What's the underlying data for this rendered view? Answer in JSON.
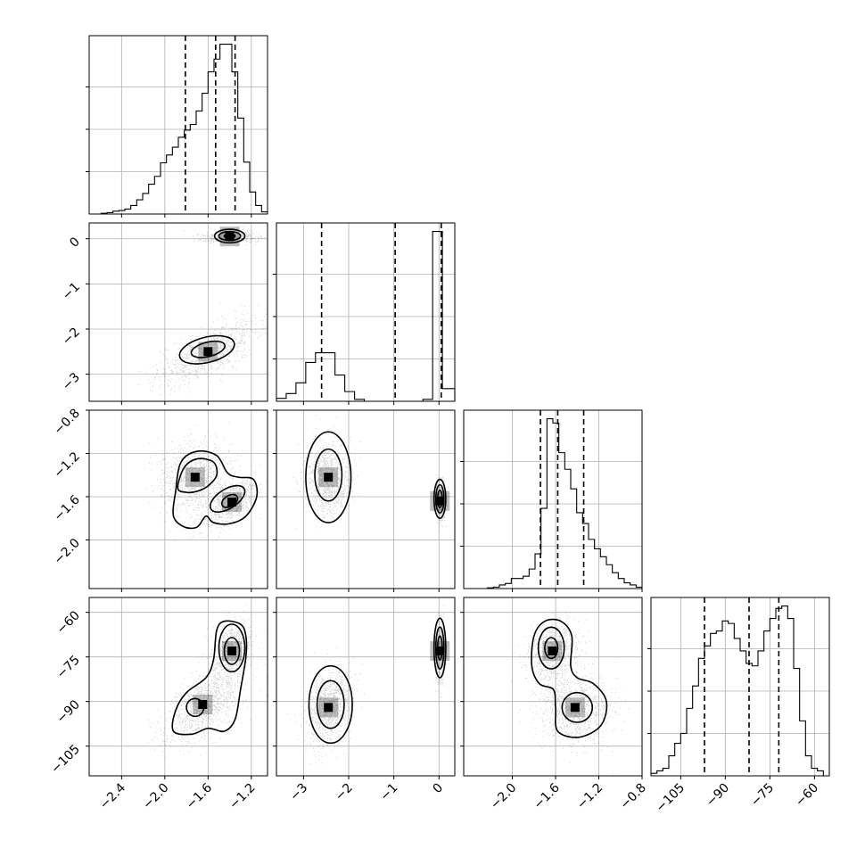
{
  "chart_data": {
    "type": "corner",
    "title": "",
    "quantiles": [
      0.16,
      0.5,
      0.84
    ],
    "grid": true,
    "parameters": [
      {
        "range": [
          -2.7,
          -1.05
        ],
        "ticks": [
          -2.4,
          -2.0,
          -1.6,
          -1.2
        ],
        "tick_labels": [
          "−2.4",
          "−2.0",
          "−1.6",
          "−1.2"
        ],
        "quantile_values": [
          -1.81,
          -1.53,
          -1.35
        ],
        "hist": {
          "bins": [
            -2.7,
            -2.645,
            -2.59,
            -2.535,
            -2.48,
            -2.425,
            -2.37,
            -2.315,
            -2.26,
            -2.205,
            -2.15,
            -2.095,
            -2.04,
            -1.985,
            -1.93,
            -1.875,
            -1.82,
            -1.765,
            -1.71,
            -1.655,
            -1.6,
            -1.545,
            -1.49,
            -1.435,
            -1.38,
            -1.325,
            -1.27,
            -1.215,
            -1.16,
            -1.105,
            -1.05
          ],
          "counts": [
            0,
            0,
            1,
            2,
            4,
            5,
            7,
            12,
            20,
            29,
            42,
            53,
            72,
            83,
            94,
            108,
            118,
            126,
            145,
            170,
            200,
            218,
            239,
            239,
            200,
            135,
            73,
            31,
            12,
            3
          ]
        }
      },
      {
        "range": [
          -3.6,
          0.35
        ],
        "ticks": [
          -3,
          -2,
          -1,
          0
        ],
        "tick_labels": [
          "−3",
          "−2",
          "−1",
          "0"
        ],
        "quantile_values": [
          -2.6,
          -0.97,
          0.05
        ],
        "hist": {
          "bins": [
            -3.6,
            -3.3838,
            -3.1676,
            -2.9514,
            -2.7352,
            -2.519,
            -2.3028,
            -2.0866,
            -1.8704,
            -1.6542,
            -1.438,
            -1.2218,
            -1.0056,
            -0.7894,
            -0.5732,
            -0.357,
            -0.1408,
            0.0754,
            0.35
          ],
          "counts": [
            3,
            8,
            19,
            40,
            50,
            50,
            27,
            10,
            2,
            0,
            0,
            0,
            0,
            0,
            0,
            2,
            175,
            13
          ]
        }
      },
      {
        "range": [
          -2.45,
          -0.8
        ],
        "ticks": [
          -2.0,
          -1.6,
          -1.2,
          -0.8
        ],
        "tick_labels": [
          "−2.0",
          "−1.6",
          "−1.2",
          "−0.8"
        ],
        "quantile_values": [
          -1.74,
          -1.58,
          -1.34
        ],
        "hist": {
          "bins": [
            -2.45,
            -2.395,
            -2.34,
            -2.285,
            -2.23,
            -2.175,
            -2.12,
            -2.065,
            -2.01,
            -1.955,
            -1.9,
            -1.845,
            -1.79,
            -1.735,
            -1.68,
            -1.625,
            -1.57,
            -1.515,
            -1.46,
            -1.405,
            -1.35,
            -1.295,
            -1.24,
            -1.185,
            -1.13,
            -1.075,
            -1.02,
            -0.965,
            -0.91,
            -0.855,
            -0.8
          ],
          "counts": [
            0,
            0,
            0,
            0,
            1,
            2,
            5,
            7,
            14,
            14,
            17,
            27,
            48,
            111,
            235,
            229,
            188,
            165,
            138,
            105,
            90,
            68,
            55,
            44,
            33,
            22,
            14,
            8,
            5,
            2
          ]
        }
      },
      {
        "range": [
          -115,
          -55
        ],
        "ticks": [
          -105,
          -90,
          -75,
          -60
        ],
        "tick_labels": [
          "−105",
          "−90",
          "−75",
          "−60"
        ],
        "quantile_values": [
          -97,
          -82,
          -72
        ],
        "hist": {
          "bins": [
            -115,
            -113,
            -111,
            -109,
            -107,
            -105,
            -103,
            -101,
            -99,
            -97,
            -95,
            -93,
            -91,
            -89,
            -87,
            -85,
            -83,
            -81,
            -79,
            -77,
            -75,
            -73,
            -71,
            -69,
            -67,
            -65,
            -63,
            -61,
            -59,
            -57,
            -55
          ],
          "counts": [
            1,
            2,
            3,
            8,
            13,
            17,
            27,
            36,
            47,
            52,
            57,
            58,
            62,
            61,
            55,
            50,
            45,
            44,
            50,
            58,
            63,
            67,
            68,
            63,
            43,
            22,
            8,
            3,
            2,
            0
          ]
        }
      }
    ],
    "pairs": [
      {
        "x": 0,
        "y": 1,
        "components": [
          {
            "w": 0.45,
            "mx": -1.4,
            "my": 0.05,
            "sx": 0.11,
            "sy": 0.06,
            "rho": 0.0
          },
          {
            "w": 0.55,
            "mx": -1.6,
            "my": -2.5,
            "sx": 0.22,
            "sy": 0.35,
            "rho": 0.7
          }
        ]
      },
      {
        "x": 0,
        "y": 2,
        "components": [
          {
            "w": 0.55,
            "mx": -1.72,
            "my": -1.42,
            "sx": 0.17,
            "sy": 0.17,
            "rho": 0.1
          },
          {
            "w": 0.45,
            "mx": -1.38,
            "my": -1.65,
            "sx": 0.11,
            "sy": 0.1,
            "rho": 0.5
          }
        ]
      },
      {
        "x": 1,
        "y": 2,
        "components": [
          {
            "w": 0.55,
            "mx": -2.45,
            "my": -1.42,
            "sx": 0.25,
            "sy": 0.17,
            "rho": 0.0
          },
          {
            "w": 0.45,
            "mx": 0.02,
            "my": -1.64,
            "sx": 0.05,
            "sy": 0.08,
            "rho": 0.0
          }
        ]
      },
      {
        "x": 0,
        "y": 3,
        "components": [
          {
            "w": 0.55,
            "mx": -1.65,
            "my": -91,
            "sx": 0.18,
            "sy": 6.5,
            "rho": 0.55
          },
          {
            "w": 0.45,
            "mx": -1.38,
            "my": -73,
            "sx": 0.09,
            "sy": 5.0,
            "rho": 0.3
          }
        ]
      },
      {
        "x": 1,
        "y": 3,
        "components": [
          {
            "w": 0.55,
            "mx": -2.45,
            "my": -92,
            "sx": 0.25,
            "sy": 6.5,
            "rho": 0.3
          },
          {
            "w": 0.45,
            "mx": 0.02,
            "my": -73,
            "sx": 0.05,
            "sy": 4.5,
            "rho": 0.0
          }
        ]
      },
      {
        "x": 2,
        "y": 3,
        "components": [
          {
            "w": 0.45,
            "mx": -1.63,
            "my": -73,
            "sx": 0.12,
            "sy": 5.0,
            "rho": 0.2
          },
          {
            "w": 0.55,
            "mx": -1.42,
            "my": -92,
            "sx": 0.17,
            "sy": 6.0,
            "rho": 0.0
          }
        ]
      }
    ],
    "contours": [
      {
        "x": 0,
        "y": 1,
        "levels": [
          {
            "shape": "ellipse",
            "cx": -1.4,
            "cy": 0.06,
            "rx": 0.14,
            "ry": 0.15
          },
          {
            "shape": "ellipse",
            "cx": -1.4,
            "cy": 0.06,
            "rx": 0.1,
            "ry": 0.1
          },
          {
            "shape": "ellipse",
            "cx": -1.4,
            "cy": 0.06,
            "rx": 0.05,
            "ry": 0.05
          },
          {
            "shape": "ellipse",
            "cx": -1.61,
            "cy": -2.46,
            "rx": 0.26,
            "ry": 0.28,
            "angle": -14
          },
          {
            "shape": "ellipse",
            "cx": -1.6,
            "cy": -2.45,
            "rx": 0.16,
            "ry": 0.16,
            "angle": -14
          }
        ]
      },
      {
        "x": 0,
        "y": 2,
        "levels": [
          {
            "shape": "poly",
            "points": [
              [
                -1.92,
                -1.78
              ],
              [
                -1.9,
                -1.55
              ],
              [
                -1.85,
                -1.28
              ],
              [
                -1.7,
                -1.18
              ],
              [
                -1.52,
                -1.22
              ],
              [
                -1.42,
                -1.38
              ],
              [
                -1.32,
                -1.42
              ],
              [
                -1.18,
                -1.44
              ],
              [
                -1.15,
                -1.6
              ],
              [
                -1.25,
                -1.78
              ],
              [
                -1.4,
                -1.85
              ],
              [
                -1.55,
                -1.84
              ],
              [
                -1.62,
                -1.78
              ],
              [
                -1.7,
                -1.88
              ],
              [
                -1.82,
                -1.88
              ]
            ]
          },
          {
            "shape": "poly",
            "points": [
              [
                -1.88,
                -1.52
              ],
              [
                -1.82,
                -1.33
              ],
              [
                -1.7,
                -1.25
              ],
              [
                -1.55,
                -1.28
              ],
              [
                -1.52,
                -1.4
              ],
              [
                -1.6,
                -1.5
              ],
              [
                -1.7,
                -1.55
              ],
              [
                -1.8,
                -1.56
              ]
            ]
          },
          {
            "shape": "ellipse",
            "cx": -1.42,
            "cy": -1.62,
            "rx": 0.18,
            "ry": 0.09,
            "angle": -32
          },
          {
            "shape": "ellipse",
            "cx": -1.4,
            "cy": -1.64,
            "rx": 0.08,
            "ry": 0.05,
            "angle": -32
          }
        ]
      },
      {
        "x": 1,
        "y": 2,
        "levels": [
          {
            "shape": "ellipse",
            "cx": -2.45,
            "cy": -1.42,
            "rx": 0.5,
            "ry": 0.42
          },
          {
            "shape": "ellipse",
            "cx": -2.45,
            "cy": -1.4,
            "rx": 0.3,
            "ry": 0.24
          },
          {
            "shape": "ellipse",
            "cx": 0.02,
            "cy": -1.62,
            "rx": 0.13,
            "ry": 0.18
          },
          {
            "shape": "ellipse",
            "cx": 0.02,
            "cy": -1.62,
            "rx": 0.09,
            "ry": 0.13
          },
          {
            "shape": "ellipse",
            "cx": 0.02,
            "cy": -1.62,
            "rx": 0.05,
            "ry": 0.08
          }
        ]
      },
      {
        "x": 0,
        "y": 3,
        "levels": [
          {
            "shape": "poly",
            "points": [
              [
                -1.92,
                -100
              ],
              [
                -1.9,
                -93
              ],
              [
                -1.8,
                -87
              ],
              [
                -1.62,
                -82
              ],
              [
                -1.55,
                -76
              ],
              [
                -1.52,
                -66
              ],
              [
                -1.45,
                -63
              ],
              [
                -1.3,
                -64
              ],
              [
                -1.25,
                -68
              ],
              [
                -1.25,
                -75
              ],
              [
                -1.3,
                -86
              ],
              [
                -1.35,
                -96
              ],
              [
                -1.45,
                -100
              ],
              [
                -1.6,
                -99
              ],
              [
                -1.75,
                -101
              ]
            ]
          },
          {
            "shape": "ellipse",
            "cx": -1.38,
            "cy": -72,
            "rx": 0.12,
            "ry": 8.0
          },
          {
            "shape": "ellipse",
            "cx": -1.38,
            "cy": -73,
            "rx": 0.07,
            "ry": 4.5
          },
          {
            "shape": "ellipse",
            "cx": -1.72,
            "cy": -92,
            "rx": 0.08,
            "ry": 3.0,
            "angle": -15
          }
        ]
      },
      {
        "x": 1,
        "y": 3,
        "levels": [
          {
            "shape": "ellipse",
            "cx": -2.4,
            "cy": -91,
            "rx": 0.48,
            "ry": 13
          },
          {
            "shape": "ellipse",
            "cx": -2.4,
            "cy": -91,
            "rx": 0.3,
            "ry": 8
          },
          {
            "shape": "ellipse",
            "cx": 0.02,
            "cy": -72,
            "rx": 0.13,
            "ry": 10
          },
          {
            "shape": "ellipse",
            "cx": 0.02,
            "cy": -72,
            "rx": 0.09,
            "ry": 7
          },
          {
            "shape": "ellipse",
            "cx": 0.02,
            "cy": -72,
            "rx": 0.05,
            "ry": 4
          }
        ]
      },
      {
        "x": 2,
        "y": 3,
        "levels": [
          {
            "shape": "poly",
            "points": [
              [
                -1.82,
                -78
              ],
              [
                -1.8,
                -68
              ],
              [
                -1.7,
                -63
              ],
              [
                -1.55,
                -63
              ],
              [
                -1.45,
                -68
              ],
              [
                -1.46,
                -78
              ],
              [
                -1.4,
                -82
              ],
              [
                -1.25,
                -84
              ],
              [
                -1.13,
                -90
              ],
              [
                -1.18,
                -98
              ],
              [
                -1.38,
                -102
              ],
              [
                -1.58,
                -100
              ],
              [
                -1.6,
                -92
              ],
              [
                -1.62,
                -86
              ],
              [
                -1.75,
                -84
              ]
            ]
          },
          {
            "shape": "ellipse",
            "cx": -1.64,
            "cy": -72,
            "rx": 0.12,
            "ry": 7
          },
          {
            "shape": "ellipse",
            "cx": -1.64,
            "cy": -72,
            "rx": 0.06,
            "ry": 3.5
          },
          {
            "shape": "ellipse",
            "cx": -1.4,
            "cy": -92,
            "rx": 0.14,
            "ry": 5
          }
        ]
      }
    ]
  }
}
